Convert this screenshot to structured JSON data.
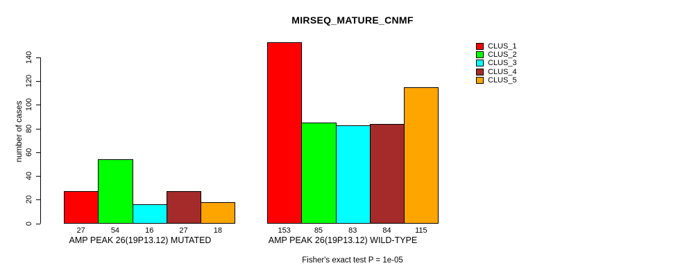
{
  "chart_data": {
    "type": "bar",
    "title": "MIRSEQ_MATURE_CNMF",
    "ylabel": "number of cases",
    "footer": "Fisher's exact test P = 1e-05",
    "yticks": [
      0,
      20,
      40,
      60,
      80,
      100,
      120,
      140
    ],
    "ylim": [
      0,
      153
    ],
    "grid": false,
    "legend_position": "top-right",
    "groups": [
      {
        "label": "AMP PEAK 26(19P13.12) MUTATED",
        "values": [
          27,
          54,
          16,
          27,
          18
        ]
      },
      {
        "label": "AMP PEAK 26(19P13.12) WILD-TYPE",
        "values": [
          153,
          85,
          83,
          84,
          115
        ]
      }
    ],
    "legend": [
      {
        "label": "CLUS_1",
        "color": "#FF0000"
      },
      {
        "label": "CLUS_2",
        "color": "#00FF00"
      },
      {
        "label": "CLUS_3",
        "color": "#00FFFF"
      },
      {
        "label": "CLUS_4",
        "color": "#A52A2A"
      },
      {
        "label": "CLUS_5",
        "color": "#FFA500"
      }
    ]
  }
}
